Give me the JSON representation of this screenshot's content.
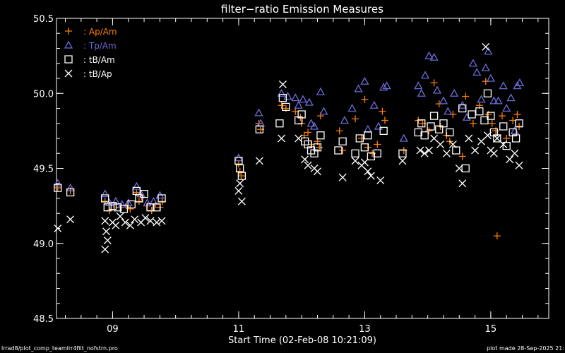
{
  "chart_data": {
    "type": "scatter",
    "title": "filter−ratio Emission Measures",
    "xlabel": "Start Time (02-Feb-08 10:21:09)",
    "ylabel": "",
    "xlim": [
      8.11,
      15.92
    ],
    "ylim": [
      48.5,
      50.5
    ],
    "xticks": [
      {
        "value": 9,
        "label": "09"
      },
      {
        "value": 11,
        "label": "11"
      },
      {
        "value": 13,
        "label": "13"
      },
      {
        "value": 15,
        "label": "15"
      }
    ],
    "yticks": [
      {
        "value": 48.5,
        "label": "48.5"
      },
      {
        "value": 49.0,
        "label": "49.0"
      },
      {
        "value": 49.5,
        "label": "49.5"
      },
      {
        "value": 50.0,
        "label": "50.0"
      },
      {
        "value": 50.5,
        "label": "50.5"
      }
    ],
    "grid": false,
    "legend_position": "top-left",
    "series": [
      {
        "name": ": Ap/Am",
        "marker": "plus",
        "color": "#ff7f00",
        "points": [
          [
            8.13,
            49.37
          ],
          [
            8.33,
            49.35
          ],
          [
            8.88,
            49.28
          ],
          [
            8.95,
            49.22
          ],
          [
            9.02,
            49.26
          ],
          [
            9.12,
            49.24
          ],
          [
            9.22,
            49.25
          ],
          [
            9.28,
            49.23
          ],
          [
            9.38,
            49.34
          ],
          [
            9.42,
            49.28
          ],
          [
            9.46,
            49.31
          ],
          [
            9.55,
            49.25
          ],
          [
            9.62,
            49.22
          ],
          [
            9.68,
            49.26
          ],
          [
            9.75,
            49.24
          ],
          [
            9.79,
            49.28
          ],
          [
            11.0,
            49.53
          ],
          [
            11.02,
            49.48
          ],
          [
            11.04,
            49.45
          ],
          [
            11.32,
            49.8
          ],
          [
            11.35,
            49.76
          ],
          [
            11.68,
            49.92
          ],
          [
            11.75,
            49.9
          ],
          [
            11.9,
            49.88
          ],
          [
            11.98,
            49.84
          ],
          [
            12.0,
            49.8
          ],
          [
            12.04,
            49.72
          ],
          [
            12.1,
            49.74
          ],
          [
            12.15,
            49.66
          ],
          [
            12.25,
            49.68
          ],
          [
            12.28,
            49.64
          ],
          [
            12.3,
            49.85
          ],
          [
            12.6,
            49.75
          ],
          [
            12.65,
            49.62
          ],
          [
            12.85,
            49.83
          ],
          [
            12.95,
            49.7
          ],
          [
            13.0,
            49.96
          ],
          [
            13.05,
            49.64
          ],
          [
            13.12,
            49.6
          ],
          [
            13.2,
            49.66
          ],
          [
            13.28,
            49.88
          ],
          [
            13.32,
            49.82
          ],
          [
            13.62,
            49.62
          ],
          [
            13.85,
            49.82
          ],
          [
            13.92,
            49.8
          ],
          [
            14.02,
            49.75
          ],
          [
            14.1,
            50.07
          ],
          [
            14.18,
            49.93
          ],
          [
            14.2,
            49.78
          ],
          [
            14.3,
            49.72
          ],
          [
            14.35,
            49.68
          ],
          [
            14.4,
            49.86
          ],
          [
            14.55,
            49.58
          ],
          [
            14.6,
            49.98
          ],
          [
            14.72,
            49.8
          ],
          [
            14.82,
            49.92
          ],
          [
            14.92,
            50.08
          ],
          [
            14.96,
            49.86
          ],
          [
            15.02,
            49.8
          ],
          [
            15.08,
            49.75
          ],
          [
            15.1,
            49.05
          ],
          [
            15.18,
            49.85
          ],
          [
            15.25,
            49.7
          ],
          [
            15.35,
            49.82
          ],
          [
            15.42,
            49.86
          ],
          [
            15.45,
            49.78
          ]
        ]
      },
      {
        "name": ": Tp/Am",
        "marker": "triangle",
        "color": "#6a6ad8",
        "points": [
          [
            8.13,
            49.4
          ],
          [
            8.33,
            49.37
          ],
          [
            8.88,
            49.33
          ],
          [
            8.95,
            49.27
          ],
          [
            9.05,
            49.28
          ],
          [
            9.15,
            49.26
          ],
          [
            9.25,
            49.27
          ],
          [
            9.38,
            49.38
          ],
          [
            9.45,
            49.33
          ],
          [
            9.55,
            49.27
          ],
          [
            9.65,
            49.28
          ],
          [
            9.75,
            49.32
          ],
          [
            11.0,
            49.57
          ],
          [
            11.32,
            49.87
          ],
          [
            11.35,
            49.8
          ],
          [
            11.68,
            50.0
          ],
          [
            11.78,
            49.98
          ],
          [
            11.9,
            49.97
          ],
          [
            11.95,
            49.92
          ],
          [
            12.02,
            49.96
          ],
          [
            12.12,
            49.94
          ],
          [
            12.15,
            49.8
          ],
          [
            12.2,
            49.78
          ],
          [
            12.3,
            50.01
          ],
          [
            12.35,
            49.88
          ],
          [
            12.68,
            49.82
          ],
          [
            12.8,
            49.9
          ],
          [
            12.9,
            50.03
          ],
          [
            13.0,
            50.08
          ],
          [
            13.05,
            49.76
          ],
          [
            13.15,
            49.92
          ],
          [
            13.22,
            49.78
          ],
          [
            13.3,
            50.04
          ],
          [
            13.35,
            50.05
          ],
          [
            13.62,
            49.7
          ],
          [
            13.85,
            50.05
          ],
          [
            13.9,
            50.0
          ],
          [
            13.96,
            50.12
          ],
          [
            14.02,
            50.25
          ],
          [
            14.1,
            50.24
          ],
          [
            14.15,
            50.02
          ],
          [
            14.25,
            49.95
          ],
          [
            14.32,
            49.88
          ],
          [
            14.42,
            50.0
          ],
          [
            14.55,
            49.92
          ],
          [
            14.62,
            49.84
          ],
          [
            14.72,
            50.2
          ],
          [
            14.78,
            50.14
          ],
          [
            14.85,
            49.96
          ],
          [
            14.92,
            50.17
          ],
          [
            14.96,
            50.28
          ],
          [
            15.0,
            50.1
          ],
          [
            15.05,
            49.95
          ],
          [
            15.12,
            49.95
          ],
          [
            15.2,
            50.05
          ],
          [
            15.25,
            49.9
          ],
          [
            15.32,
            49.97
          ],
          [
            15.38,
            49.75
          ],
          [
            15.42,
            50.05
          ],
          [
            15.46,
            50.07
          ]
        ]
      },
      {
        "name": ": tB/Am",
        "marker": "square",
        "color": "#ffffff",
        "points": [
          [
            8.13,
            49.37
          ],
          [
            8.33,
            49.34
          ],
          [
            8.88,
            49.3
          ],
          [
            8.92,
            49.24
          ],
          [
            9.0,
            49.25
          ],
          [
            9.08,
            49.24
          ],
          [
            9.18,
            49.23
          ],
          [
            9.3,
            49.26
          ],
          [
            9.38,
            49.35
          ],
          [
            9.42,
            49.3
          ],
          [
            9.5,
            49.33
          ],
          [
            9.6,
            49.24
          ],
          [
            9.7,
            49.24
          ],
          [
            9.78,
            49.3
          ],
          [
            11.0,
            49.55
          ],
          [
            11.02,
            49.5
          ],
          [
            11.05,
            49.45
          ],
          [
            11.33,
            49.76
          ],
          [
            11.65,
            49.8
          ],
          [
            11.7,
            49.97
          ],
          [
            11.75,
            49.91
          ],
          [
            11.95,
            49.82
          ],
          [
            12.0,
            49.86
          ],
          [
            12.05,
            49.68
          ],
          [
            12.1,
            49.66
          ],
          [
            12.15,
            49.62
          ],
          [
            12.2,
            49.6
          ],
          [
            12.25,
            49.64
          ],
          [
            12.3,
            49.72
          ],
          [
            12.58,
            49.62
          ],
          [
            12.65,
            49.68
          ],
          [
            12.85,
            49.6
          ],
          [
            12.92,
            49.7
          ],
          [
            13.0,
            49.64
          ],
          [
            13.05,
            49.72
          ],
          [
            13.1,
            49.58
          ],
          [
            13.2,
            49.6
          ],
          [
            13.3,
            49.75
          ],
          [
            13.6,
            49.6
          ],
          [
            13.85,
            49.74
          ],
          [
            13.9,
            49.8
          ],
          [
            13.95,
            49.72
          ],
          [
            14.05,
            49.78
          ],
          [
            14.1,
            49.85
          ],
          [
            14.18,
            49.76
          ],
          [
            14.25,
            49.8
          ],
          [
            14.35,
            49.74
          ],
          [
            14.45,
            49.62
          ],
          [
            14.55,
            49.9
          ],
          [
            14.6,
            49.5
          ],
          [
            14.7,
            49.86
          ],
          [
            14.82,
            49.88
          ],
          [
            14.9,
            49.82
          ],
          [
            14.95,
            50.0
          ],
          [
            15.0,
            49.85
          ],
          [
            15.05,
            49.74
          ],
          [
            15.1,
            49.7
          ],
          [
            15.2,
            49.78
          ],
          [
            15.25,
            49.65
          ],
          [
            15.35,
            49.74
          ],
          [
            15.4,
            49.7
          ],
          [
            15.45,
            49.8
          ]
        ]
      },
      {
        "name": ": tB/Ap",
        "marker": "x",
        "color": "#ffffff",
        "points": [
          [
            8.13,
            49.1
          ],
          [
            8.33,
            49.16
          ],
          [
            8.88,
            49.15
          ],
          [
            8.9,
            49.08
          ],
          [
            8.92,
            49.02
          ],
          [
            8.88,
            48.96
          ],
          [
            9.0,
            49.14
          ],
          [
            9.05,
            49.12
          ],
          [
            9.12,
            49.18
          ],
          [
            9.2,
            49.14
          ],
          [
            9.28,
            49.12
          ],
          [
            9.35,
            49.16
          ],
          [
            9.45,
            49.14
          ],
          [
            9.52,
            49.17
          ],
          [
            9.6,
            49.15
          ],
          [
            9.7,
            49.14
          ],
          [
            9.78,
            49.15
          ],
          [
            11.02,
            49.4
          ],
          [
            11.05,
            49.28
          ],
          [
            11.0,
            49.35
          ],
          [
            11.33,
            49.55
          ],
          [
            11.68,
            49.7
          ],
          [
            11.7,
            50.06
          ],
          [
            11.95,
            49.7
          ],
          [
            12.05,
            49.56
          ],
          [
            12.1,
            49.52
          ],
          [
            12.2,
            49.5
          ],
          [
            12.25,
            49.48
          ],
          [
            12.65,
            49.44
          ],
          [
            12.85,
            49.55
          ],
          [
            12.95,
            49.52
          ],
          [
            13.0,
            49.54
          ],
          [
            13.05,
            49.48
          ],
          [
            13.1,
            49.45
          ],
          [
            13.25,
            49.42
          ],
          [
            13.6,
            49.55
          ],
          [
            13.88,
            49.62
          ],
          [
            13.95,
            49.6
          ],
          [
            14.02,
            49.62
          ],
          [
            14.1,
            49.7
          ],
          [
            14.2,
            49.66
          ],
          [
            14.3,
            49.6
          ],
          [
            14.4,
            49.66
          ],
          [
            14.5,
            49.5
          ],
          [
            14.55,
            49.4
          ],
          [
            14.65,
            49.7
          ],
          [
            14.75,
            49.62
          ],
          [
            14.85,
            49.68
          ],
          [
            14.92,
            50.31
          ],
          [
            14.95,
            49.72
          ],
          [
            15.0,
            49.62
          ],
          [
            15.05,
            49.6
          ],
          [
            15.1,
            49.7
          ],
          [
            15.2,
            49.66
          ],
          [
            15.3,
            49.56
          ],
          [
            15.38,
            49.6
          ],
          [
            15.45,
            49.52
          ]
        ]
      }
    ]
  },
  "footer": {
    "left": "lrrad8/plot_comp_teamlrr4filt_nofstrn.pro",
    "right": "plot made 28-Sep-2025 21:"
  }
}
